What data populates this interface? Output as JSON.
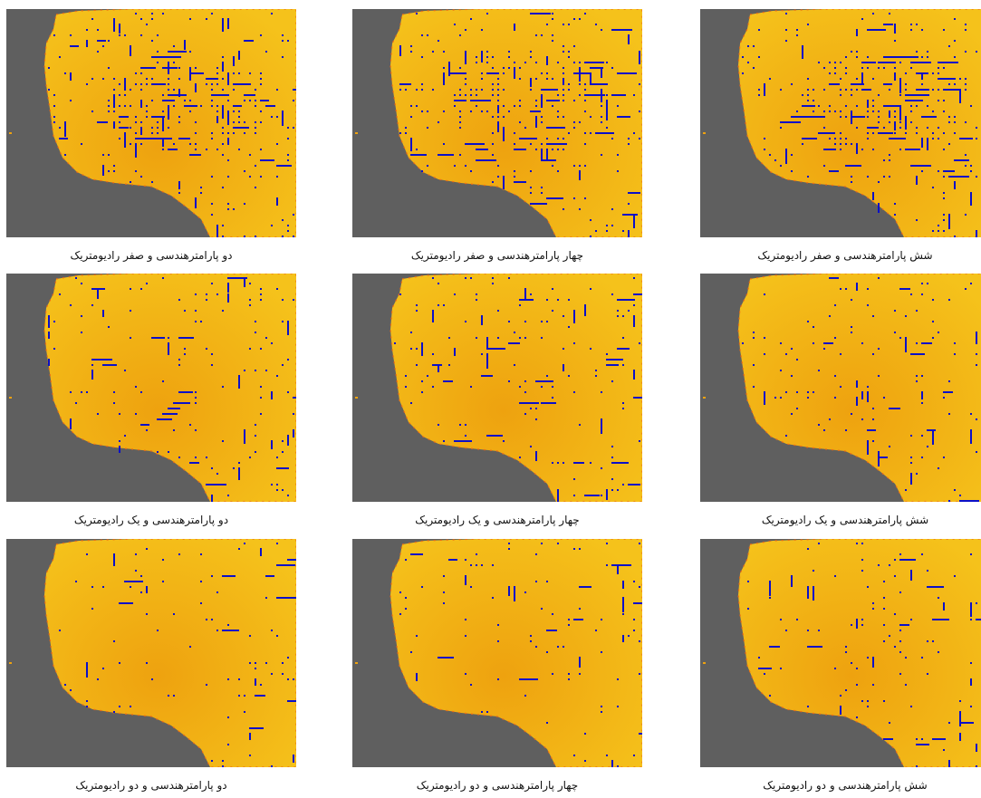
{
  "colors": {
    "background": "#5f5f5f",
    "land_light": "#f5c21b",
    "land_dark": "#eea20f",
    "coast": "#ee6a14",
    "marker": "#0b10c8"
  },
  "panels": [
    {
      "caption": "دو پارامترهندسی و صفر رادیومتریک",
      "row": 0,
      "col": 0,
      "marker_density": 0.11,
      "dense_cluster": true
    },
    {
      "caption": "چهار پارامترهندسی و صفر رادیومتریک",
      "row": 0,
      "col": 1,
      "marker_density": 0.12,
      "dense_cluster": true
    },
    {
      "caption": "شش پارامترهندسی و صفر رادیومتریک",
      "row": 0,
      "col": 2,
      "marker_density": 0.12,
      "dense_cluster": true
    },
    {
      "caption": "دو پارامترهندسی و یک رادیومتریک",
      "row": 1,
      "col": 0,
      "marker_density": 0.09,
      "dense_cluster": false
    },
    {
      "caption": "چهار پارامترهندسی و یک رادیومتریک",
      "row": 1,
      "col": 1,
      "marker_density": 0.1,
      "dense_cluster": false
    },
    {
      "caption": "شش پارامترهندسی و یک رادیومتریک",
      "row": 1,
      "col": 2,
      "marker_density": 0.1,
      "dense_cluster": false
    },
    {
      "caption": "دو پارامترهندسی و دو رادیومتریک",
      "row": 2,
      "col": 0,
      "marker_density": 0.06,
      "dense_cluster": false
    },
    {
      "caption": "چهار پارامترهندسی و دو  رادیومتریک",
      "row": 2,
      "col": 1,
      "marker_density": 0.07,
      "dense_cluster": false
    },
    {
      "caption": "شش پارامترهندسی و دو رادیومتریک",
      "row": 2,
      "col": 2,
      "marker_density": 0.07,
      "dense_cluster": false
    }
  ]
}
